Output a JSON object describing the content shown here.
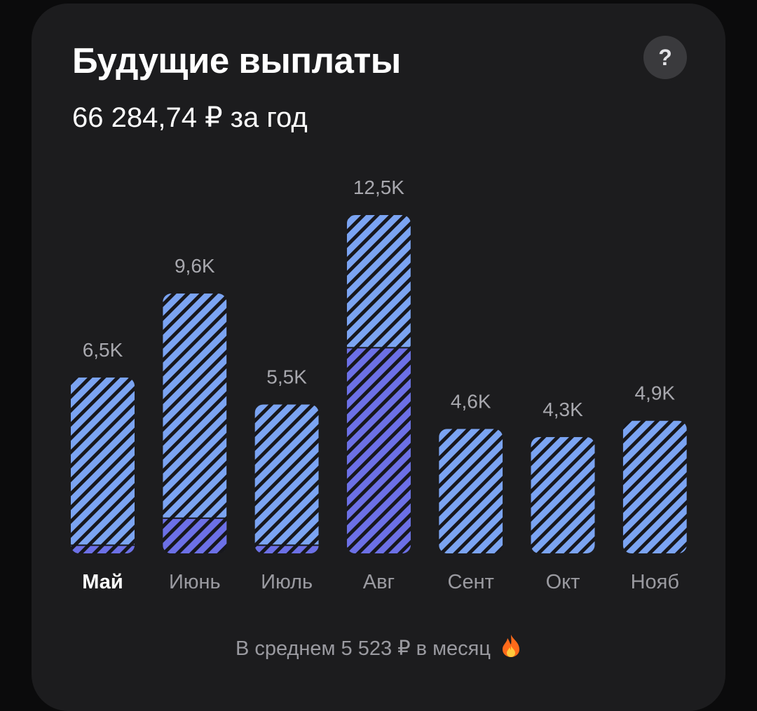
{
  "header": {
    "title": "Будущие выплаты",
    "subtitle": "66 284,74 ₽ за год",
    "help_label": "?"
  },
  "footer": {
    "text": "В среднем 5 523 ₽ в месяц",
    "icon": "fire-icon"
  },
  "colors": {
    "card_bg": "#1c1c1e",
    "bar_light": "#7ba4f2",
    "bar_dark": "#6c70e6",
    "stripe": "#17171c",
    "value_label": "#a8a8ae",
    "month_label": "#9a9aa0",
    "month_selected": "#ffffff"
  },
  "chart_data": {
    "type": "bar",
    "categories": [
      "Май",
      "Июнь",
      "Июль",
      "Авг",
      "Сент",
      "Окт",
      "Нояб"
    ],
    "value_labels": [
      "6,5K",
      "9,6K",
      "5,5K",
      "12,5K",
      "4,6K",
      "4,3K",
      "4,9K"
    ],
    "values": [
      6.5,
      9.6,
      5.5,
      12.5,
      4.6,
      4.3,
      4.9
    ],
    "lower_segment_values": [
      0.3,
      1.3,
      0.3,
      7.6,
      0,
      0,
      0
    ],
    "selected_category": "Май",
    "ylim": [
      0,
      12.5
    ]
  }
}
